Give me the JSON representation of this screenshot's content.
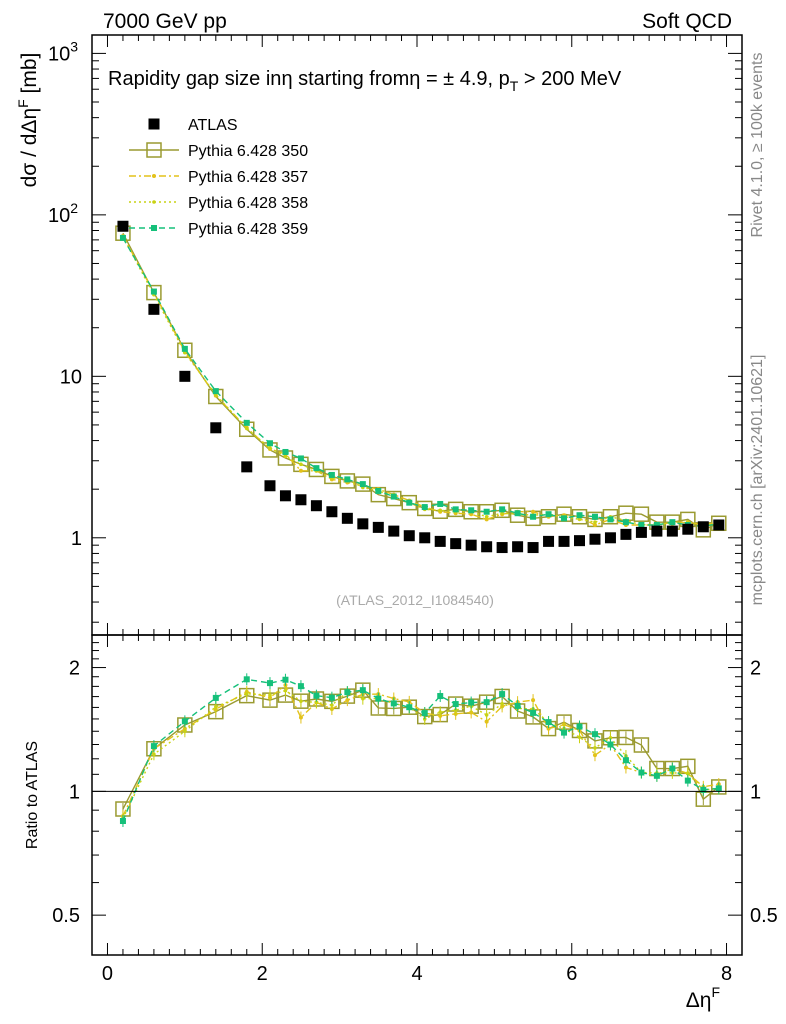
{
  "header": {
    "left": "7000 GeV pp",
    "right": "Soft QCD"
  },
  "side_labels": {
    "rivet": "Rivet 4.1.0, ≥ 100k events",
    "mcplots": "mcplots.cern.ch [arXiv:2401.10621]"
  },
  "chart_data": {
    "type": "scatter",
    "title": "Rapidity gap size in η starting from η = ± 4.9, p_T > 200 MeV",
    "title_parts": {
      "main": "Rapidity gap size in",
      "eta1": "η",
      "from": " starting from",
      "eta2": "η = ± 4.9, p",
      "sub": "T",
      "tail": " > 200 MeV"
    },
    "watermark": "(ATLAS_2012_I1084540)",
    "xlabel": "Δη",
    "xlabel_sup": "F",
    "ylabel": "dσ / dΔη",
    "ylabel_sup": "F",
    "ylabel_unit": " [mb]",
    "ratio_ylabel": "Ratio to ATLAS",
    "xlim": [
      -0.2,
      8.2
    ],
    "ylim": [
      0.25,
      1300
    ],
    "yscale": "log",
    "ratio_ylim": [
      0.4,
      2.4
    ],
    "x_ticks": [
      0,
      2,
      4,
      6,
      8
    ],
    "y_tick_labels": [
      {
        "v": 1,
        "label": "1",
        "sup": ""
      },
      {
        "v": 10,
        "label": "10",
        "sup": ""
      },
      {
        "v": 100,
        "label": "10",
        "sup": "2"
      },
      {
        "v": 1000,
        "label": "10",
        "sup": "3"
      }
    ],
    "ratio_tick_labels": [
      {
        "v": 0.5,
        "label": "0.5"
      },
      {
        "v": 1,
        "label": "1"
      },
      {
        "v": 2,
        "label": "2"
      }
    ],
    "x": [
      0.2,
      0.6,
      1.0,
      1.4,
      1.8,
      2.1,
      2.3,
      2.5,
      2.7,
      2.9,
      3.1,
      3.3,
      3.5,
      3.7,
      3.9,
      4.1,
      4.3,
      4.5,
      4.7,
      4.9,
      5.1,
      5.3,
      5.5,
      5.7,
      5.9,
      6.1,
      6.3,
      6.5,
      6.7,
      6.9,
      7.1,
      7.3,
      7.5,
      7.7,
      7.9
    ],
    "series": [
      {
        "name": "ATLAS",
        "style": "data",
        "color": "#000000",
        "values": [
          85,
          26,
          10,
          4.8,
          2.75,
          2.1,
          1.82,
          1.72,
          1.58,
          1.45,
          1.32,
          1.22,
          1.16,
          1.1,
          1.03,
          1.0,
          0.95,
          0.92,
          0.9,
          0.88,
          0.87,
          0.88,
          0.87,
          0.95,
          0.95,
          0.96,
          0.98,
          1.0,
          1.05,
          1.08,
          1.1,
          1.1,
          1.13,
          1.17,
          1.2
        ]
      },
      {
        "name": "Pythia 6.428 350",
        "style": "open-square-solid",
        "color": "#9a9a30",
        "values": [
          77,
          33,
          14.5,
          7.5,
          4.7,
          3.5,
          3.12,
          2.85,
          2.65,
          2.4,
          2.25,
          2.15,
          1.85,
          1.75,
          1.65,
          1.52,
          1.46,
          1.5,
          1.45,
          1.45,
          1.48,
          1.38,
          1.32,
          1.35,
          1.4,
          1.35,
          1.3,
          1.35,
          1.42,
          1.4,
          1.25,
          1.25,
          1.3,
          1.12,
          1.23
        ]
      },
      {
        "name": "Pythia 6.428 357",
        "style": "dashdot",
        "color": "#e3c21a",
        "values": [
          74,
          33,
          14.2,
          7.6,
          4.8,
          3.55,
          3.3,
          2.6,
          2.6,
          2.3,
          2.2,
          2.1,
          2.0,
          1.85,
          1.7,
          1.55,
          1.45,
          1.42,
          1.4,
          1.3,
          1.4,
          1.45,
          1.45,
          1.35,
          1.38,
          1.35,
          1.2,
          1.3,
          1.2,
          1.2,
          1.2,
          1.25,
          1.25,
          1.2,
          1.25
        ]
      },
      {
        "name": "Pythia 6.428 358",
        "style": "dotted",
        "color": "#c9d213",
        "values": [
          73,
          32,
          14.0,
          7.7,
          4.75,
          3.6,
          3.2,
          2.85,
          2.6,
          2.35,
          2.3,
          2.05,
          1.95,
          1.8,
          1.65,
          1.5,
          1.48,
          1.45,
          1.45,
          1.35,
          1.42,
          1.4,
          1.38,
          1.4,
          1.35,
          1.3,
          1.25,
          1.35,
          1.28,
          1.2,
          1.22,
          1.22,
          1.25,
          1.18,
          1.22
        ]
      },
      {
        "name": "Pythia 6.428 359",
        "style": "dashed",
        "color": "#15c07a",
        "values": [
          72,
          33.5,
          14.8,
          8.1,
          5.15,
          3.85,
          3.4,
          3.1,
          2.7,
          2.45,
          2.3,
          2.15,
          1.95,
          1.8,
          1.65,
          1.55,
          1.62,
          1.5,
          1.48,
          1.45,
          1.5,
          1.42,
          1.35,
          1.4,
          1.32,
          1.38,
          1.35,
          1.3,
          1.25,
          1.2,
          1.2,
          1.25,
          1.2,
          1.18,
          1.22
        ]
      }
    ],
    "legend_location": "top-left"
  }
}
